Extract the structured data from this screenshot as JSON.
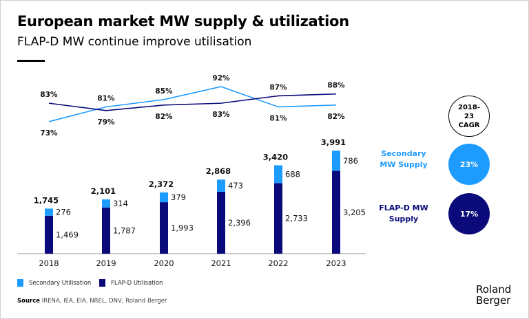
{
  "header": {
    "title": "European market MW supply & utilization",
    "subtitle": "FLAP-D MW continue improve utilisation"
  },
  "chart_data": {
    "type": "bar",
    "stacked": true,
    "categories": [
      "2018",
      "2019",
      "2020",
      "2021",
      "2022",
      "2023"
    ],
    "series": [
      {
        "name": "FLAP-D MW Supply",
        "values": [
          1469,
          1787,
          1993,
          2396,
          2733,
          3205
        ],
        "color": "#0A0A7A"
      },
      {
        "name": "Secondary MW Supply",
        "values": [
          276,
          314,
          379,
          473,
          688,
          786
        ],
        "color": "#1E9BFF"
      }
    ],
    "totals": [
      1745,
      2101,
      2372,
      2868,
      3420,
      3991
    ],
    "lines": [
      {
        "name": "Secondary Utilisation",
        "values": [
          73,
          81,
          85,
          92,
          81,
          82
        ],
        "unit": "%",
        "color": "#1E9BFF"
      },
      {
        "name": "FLAP-D Utilisation",
        "values": [
          83,
          79,
          82,
          83,
          87,
          88
        ],
        "unit": "%",
        "color": "#0A0A7A"
      }
    ],
    "grid": false,
    "legend": "bottom-left"
  },
  "cagr": {
    "header": "2018-23 CAGR",
    "secondary_label": "Secondary MW Supply",
    "secondary_value": "23%",
    "flapd_label": "FLAP-D MW Supply",
    "flapd_value": "17%"
  },
  "legend": {
    "secondary": "Secondary Utilisation",
    "flapd": "FLAP-D Utilisation"
  },
  "footer": {
    "source_label": "Source",
    "source_text": " IRENA, IEA, EIA, NREL, DNV, Roland Berger",
    "logo_line1": "Roland",
    "logo_line2": "Berger"
  }
}
